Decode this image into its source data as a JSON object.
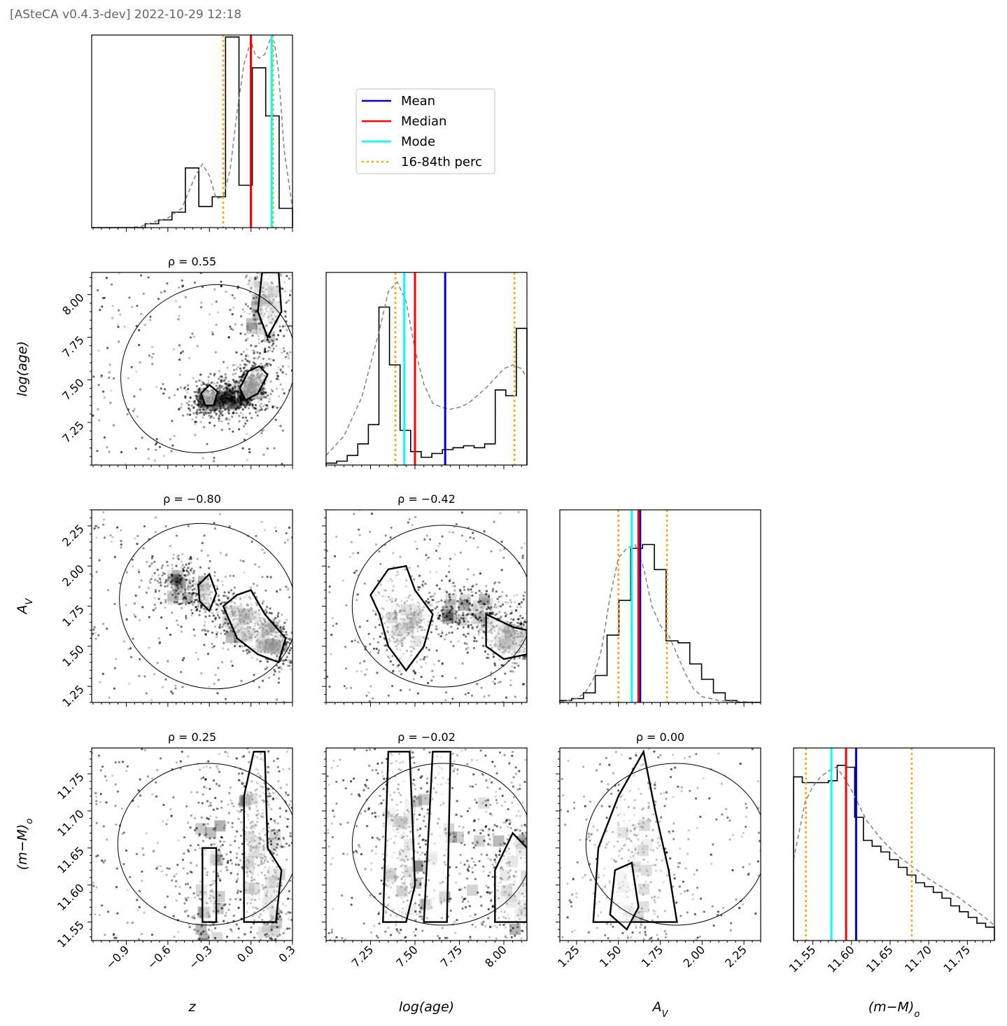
{
  "header": {
    "text": "[ASteCA v0.4.3-dev] 2022-10-29 12:18"
  },
  "colors": {
    "mean": "#0000dd",
    "median": "#ff0000",
    "mode": "#00ffff",
    "perc": "#ffa500",
    "kde": "#808080"
  },
  "chart_data": {
    "type": "corner",
    "legend": {
      "placement": "upper-left-of-triangle",
      "entries": [
        {
          "label": "Mean",
          "color": "#0000dd",
          "style": "solid"
        },
        {
          "label": "Median",
          "color": "#ff0000",
          "style": "solid"
        },
        {
          "label": "Mode",
          "color": "#00ffff",
          "style": "solid"
        },
        {
          "label": "16-84th perc",
          "color": "#ffa500",
          "style": "dotted"
        }
      ]
    },
    "params": [
      {
        "key": "z",
        "xlabel": "z",
        "range": [
          -1.15,
          0.3
        ],
        "ticks": [
          -0.9,
          -0.6,
          -0.3,
          0.0,
          0.3
        ],
        "tick_labels": [
          "−0.9",
          "−0.6",
          "−0.3",
          "0.0",
          "0.3"
        ],
        "hist": [
          0,
          0,
          0,
          0,
          0.02,
          0.04,
          0.08,
          0.31,
          0.11,
          0.16,
          0.99,
          0.22,
          0.83,
          0.58,
          0.1
        ],
        "kde_x": [
          -1.15,
          -0.9,
          -0.8,
          -0.7,
          -0.6,
          -0.5,
          -0.4,
          -0.35,
          -0.3,
          -0.25,
          -0.2,
          -0.15,
          -0.1,
          -0.05,
          0.0,
          0.03,
          0.06,
          0.1,
          0.14,
          0.17,
          0.2,
          0.24,
          0.3
        ],
        "kde_y": [
          0,
          0,
          0.005,
          0.03,
          0.05,
          0.1,
          0.27,
          0.33,
          0.27,
          0.15,
          0.16,
          0.3,
          0.6,
          0.85,
          0.97,
          0.9,
          0.88,
          0.9,
          0.98,
          0.96,
          0.8,
          0.4,
          0.1
        ],
        "mean": 0.0,
        "median": 0.0,
        "mode": 0.15,
        "p16": -0.2,
        "p84": 0.16
      },
      {
        "key": "log_age",
        "xlabel": "log(age)",
        "ylabel": "log(age)",
        "range": [
          7.0,
          8.13
        ],
        "ticks": [
          7.25,
          7.5,
          7.75,
          8.0
        ],
        "tick_labels": [
          "7.25",
          "7.50",
          "7.75",
          "8.00"
        ],
        "hist": [
          0.01,
          0.02,
          0.05,
          0.11,
          0.21,
          0.82,
          0.52,
          0.18,
          0.07,
          0.04,
          0.06,
          0.08,
          0.09,
          0.1,
          0.09,
          0.11,
          0.39,
          0.36,
          0.71
        ],
        "kde_x": [
          7.0,
          7.1,
          7.2,
          7.3,
          7.35,
          7.4,
          7.45,
          7.5,
          7.55,
          7.6,
          7.65,
          7.7,
          7.75,
          7.8,
          7.85,
          7.9,
          7.95,
          8.0,
          8.05,
          8.1,
          8.13
        ],
        "kde_y": [
          0.05,
          0.15,
          0.35,
          0.7,
          0.9,
          0.95,
          0.85,
          0.6,
          0.42,
          0.32,
          0.3,
          0.29,
          0.3,
          0.32,
          0.36,
          0.4,
          0.45,
          0.5,
          0.52,
          0.5,
          0.45
        ],
        "mean": 7.67,
        "median": 7.5,
        "mode": 7.44,
        "p16": 7.39,
        "p84": 8.06
      },
      {
        "key": "Av",
        "xlabel": "A_V",
        "ylabel": "A_V",
        "range": [
          1.15,
          2.35
        ],
        "ticks": [
          1.25,
          1.5,
          1.75,
          2.0,
          2.25
        ],
        "tick_labels": [
          "1.25",
          "1.50",
          "1.75",
          "2.00",
          "2.25"
        ],
        "hist": [
          0.01,
          0.02,
          0.05,
          0.14,
          0.35,
          0.53,
          0.8,
          0.82,
          0.69,
          0.32,
          0.31,
          0.2,
          0.12,
          0.05,
          0.01,
          0.0,
          0.0
        ],
        "kde_x": [
          1.15,
          1.25,
          1.3,
          1.35,
          1.4,
          1.45,
          1.5,
          1.55,
          1.6,
          1.65,
          1.7,
          1.75,
          1.8,
          1.85,
          1.9,
          1.95,
          2.0,
          2.1,
          2.35
        ],
        "kde_y": [
          0,
          0.02,
          0.05,
          0.12,
          0.28,
          0.55,
          0.75,
          0.8,
          0.82,
          0.7,
          0.5,
          0.4,
          0.35,
          0.25,
          0.15,
          0.07,
          0.03,
          0.01,
          0
        ],
        "mean": 1.63,
        "median": 1.62,
        "mode": 1.58,
        "p16": 1.5,
        "p84": 1.79
      },
      {
        "key": "dm",
        "xlabel": "(m-M)_o",
        "ylabel": "(m-M)_o",
        "range": [
          11.525,
          11.785
        ],
        "ticks": [
          11.55,
          11.6,
          11.65,
          11.7,
          11.75
        ],
        "tick_labels": [
          "11.55",
          "11.60",
          "11.65",
          "11.70",
          "11.75"
        ],
        "hist": [
          0.85,
          0.82,
          0.82,
          0.82,
          0.83,
          0.91,
          0.9,
          0.64,
          0.52,
          0.49,
          0.46,
          0.42,
          0.38,
          0.34,
          0.3,
          0.28,
          0.25,
          0.22,
          0.18,
          0.15,
          0.12,
          0.09,
          0.07
        ],
        "kde_x": [
          11.525,
          11.54,
          11.55,
          11.56,
          11.57,
          11.58,
          11.59,
          11.6,
          11.62,
          11.64,
          11.66,
          11.68,
          11.7,
          11.72,
          11.74,
          11.76,
          11.785
        ],
        "kde_y": [
          0.42,
          0.72,
          0.8,
          0.85,
          0.88,
          0.9,
          0.85,
          0.78,
          0.62,
          0.52,
          0.44,
          0.38,
          0.32,
          0.27,
          0.22,
          0.16,
          0.08
        ],
        "mean": 11.606,
        "median": 11.593,
        "mode": 11.574,
        "p16": 11.541,
        "p84": 11.678
      }
    ],
    "pairs": [
      {
        "x": "z",
        "y": "log_age",
        "rho_label": "ρ = 0.55"
      },
      {
        "x": "z",
        "y": "Av",
        "rho_label": "ρ = −0.80"
      },
      {
        "x": "log_age",
        "y": "Av",
        "rho_label": "ρ = −0.42"
      },
      {
        "x": "z",
        "y": "dm",
        "rho_label": "ρ = 0.25"
      },
      {
        "x": "log_age",
        "y": "dm",
        "rho_label": "ρ = −0.02"
      },
      {
        "x": "Av",
        "y": "dm",
        "rho_label": "ρ = 0.00"
      }
    ]
  }
}
